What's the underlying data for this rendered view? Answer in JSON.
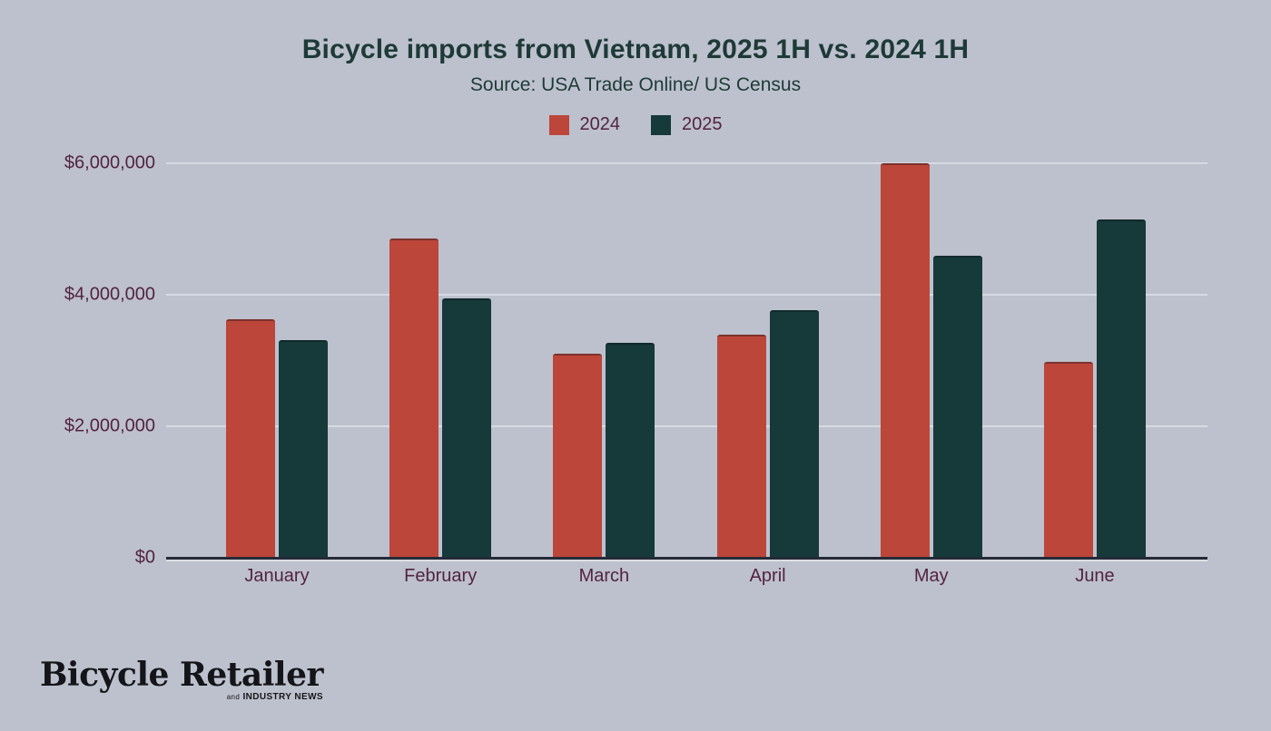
{
  "title": "Bicycle imports from Vietnam, 2025 1H vs. 2024 1H",
  "subtitle": "Source: USA Trade Online/ US Census",
  "legend": [
    {
      "label": "2024",
      "color": "#bc4639"
    },
    {
      "label": "2025",
      "color": "#16393a"
    }
  ],
  "chart_data": {
    "type": "bar",
    "categories": [
      "January",
      "February",
      "March",
      "April",
      "May",
      "June"
    ],
    "series": [
      {
        "name": "2024",
        "color": "#bc4639",
        "values": [
          3630000,
          4860000,
          3110000,
          3390000,
          6000000,
          2980000
        ]
      },
      {
        "name": "2025",
        "color": "#16393a",
        "values": [
          3310000,
          3940000,
          3270000,
          3760000,
          4590000,
          5150000
        ]
      }
    ],
    "title": "Bicycle imports from Vietnam, 2025 1H vs. 2024 1H",
    "xlabel": "",
    "ylabel": "",
    "ylim": [
      0,
      6000000
    ],
    "yticks": [
      {
        "label": "$0",
        "value": 0
      },
      {
        "label": "$2,000,000",
        "value": 2000000
      },
      {
        "label": "$4,000,000",
        "value": 4000000
      },
      {
        "label": "$6,000,000",
        "value": 6000000
      }
    ],
    "grid": true,
    "legend_position": "top"
  },
  "logo": {
    "wordmark": "Bicycle Retailer",
    "tagline_prefix": "and",
    "tagline": "INDUSTRY NEWS"
  },
  "colors": {
    "background": "#bdc1cd",
    "title_text": "#1e3a38",
    "axis_text": "#522342",
    "gridline": "#d6dae2",
    "axis_line": "#252a38",
    "series_2024": "#bc4639",
    "series_2025": "#16393a",
    "logo_text": "#141519"
  }
}
